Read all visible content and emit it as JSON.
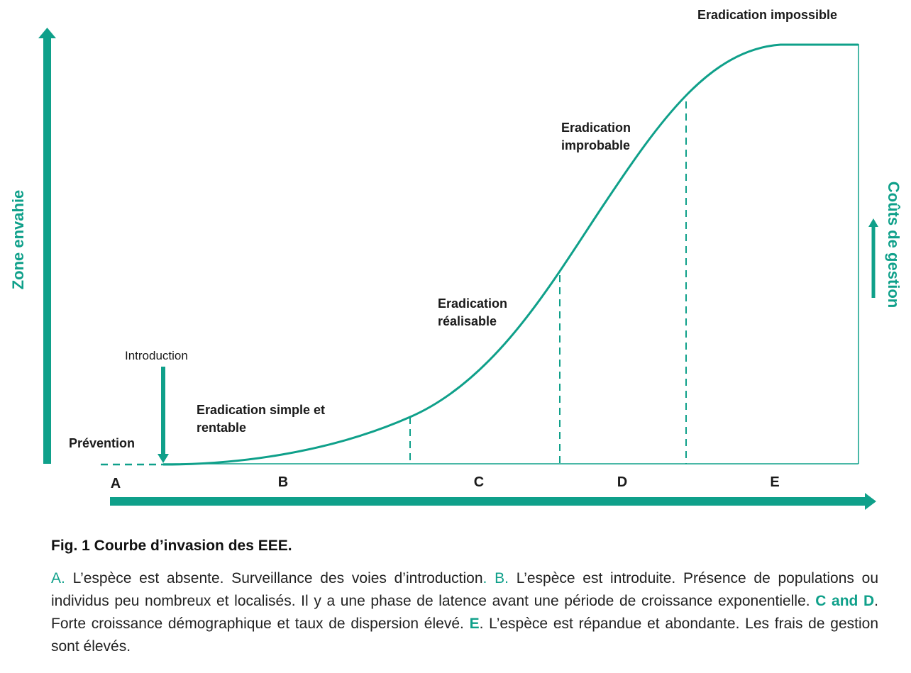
{
  "colors": {
    "accent": "#0fa08a",
    "text": "#1a1a1a"
  },
  "axes": {
    "y_left_title": "Zone envahie",
    "y_right_title": "Coûts de gestion"
  },
  "phases": [
    "A",
    "B",
    "C",
    "D",
    "E"
  ],
  "annotations": {
    "prevention": "Prévention",
    "introduction": "Introduction",
    "eradication_simple_line1": "Eradication simple et",
    "eradication_simple_line2": "rentable",
    "eradication_realisable_line1": "Eradication",
    "eradication_realisable_line2": "réalisable",
    "eradication_improbable_line1": "Eradication",
    "eradication_improbable_line2": "improbable",
    "eradication_impossible": "Eradication impossible"
  },
  "caption": {
    "title": "Fig. 1 Courbe d’invasion des EEE.",
    "a_marker": "A.",
    "a_text": " L’espèce est absente. Surveillance des voies d’introduction",
    "a_dot": ".",
    "b_marker": "B.",
    "b_text": " L’espèce est introduite. Présence de populations ou individus peu nombreux et localisés. Il y a une phase de latence avant une période de croissance exponentielle. ",
    "cd_marker": "C and D",
    "cd_text": ". Forte croissance démographique et taux de dispersion élevé. ",
    "e_marker": "E",
    "e_text": ". L’espèce est répandue et abondante. Les frais de gestion sont élevés."
  }
}
